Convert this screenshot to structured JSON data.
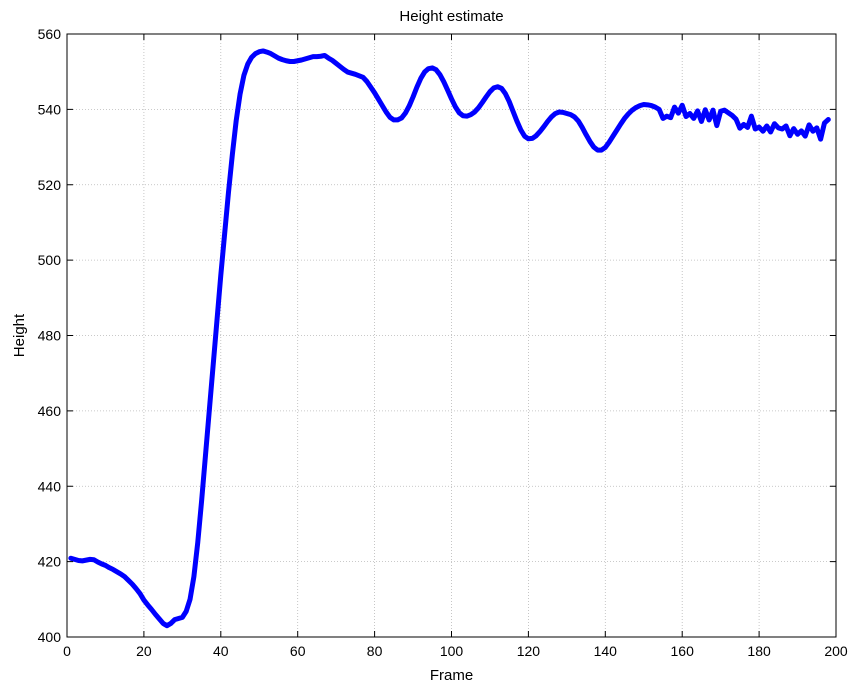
{
  "chart_data": {
    "type": "line",
    "title": "Height estimate",
    "xlabel": "Frame",
    "ylabel": "Height",
    "xlim": [
      0,
      200
    ],
    "ylim": [
      400,
      560
    ],
    "x_ticks": [
      0,
      20,
      40,
      60,
      80,
      100,
      120,
      140,
      160,
      180,
      200
    ],
    "y_ticks": [
      400,
      420,
      440,
      460,
      480,
      500,
      520,
      540,
      560
    ],
    "x_tick_labels": [
      "0",
      "20",
      "40",
      "60",
      "80",
      "100",
      "120",
      "140",
      "160",
      "180",
      "200"
    ],
    "y_tick_labels": [
      "400",
      "420",
      "440",
      "460",
      "480",
      "500",
      "520",
      "540",
      "560"
    ],
    "grid": true,
    "legend": "none",
    "line_color": "#0000ff",
    "series": [
      {
        "points": [
          [
            1,
            420.9
          ],
          [
            2,
            420.6
          ],
          [
            3,
            420.3
          ],
          [
            4,
            420.2
          ],
          [
            5,
            420.4
          ],
          [
            6,
            420.6
          ],
          [
            7,
            420.5
          ],
          [
            8,
            419.9
          ],
          [
            9,
            419.4
          ],
          [
            10,
            419.0
          ],
          [
            11,
            418.4
          ],
          [
            12,
            417.9
          ],
          [
            13,
            417.3
          ],
          [
            14,
            416.7
          ],
          [
            15,
            416.0
          ],
          [
            16,
            415.0
          ],
          [
            17,
            414.0
          ],
          [
            18,
            412.8
          ],
          [
            19,
            411.5
          ],
          [
            20,
            409.8
          ],
          [
            21,
            408.5
          ],
          [
            22,
            407.3
          ],
          [
            23,
            406.0
          ],
          [
            24,
            404.8
          ],
          [
            25,
            403.6
          ],
          [
            26,
            403.0
          ],
          [
            27,
            403.6
          ],
          [
            28,
            404.6
          ],
          [
            29,
            404.9
          ],
          [
            30,
            405.2
          ],
          [
            31,
            406.8
          ],
          [
            32,
            410.0
          ],
          [
            33,
            416.0
          ],
          [
            34,
            425.0
          ],
          [
            35,
            436.0
          ],
          [
            36,
            448.0
          ],
          [
            37,
            460.0
          ],
          [
            38,
            472.0
          ],
          [
            39,
            484.0
          ],
          [
            40,
            496.0
          ],
          [
            41,
            507.0
          ],
          [
            42,
            518.0
          ],
          [
            43,
            528.0
          ],
          [
            44,
            537.0
          ],
          [
            45,
            544.0
          ],
          [
            46,
            549.0
          ],
          [
            47,
            552.0
          ],
          [
            48,
            553.8
          ],
          [
            49,
            554.8
          ],
          [
            50,
            555.3
          ],
          [
            51,
            555.5
          ],
          [
            52,
            555.2
          ],
          [
            53,
            554.8
          ],
          [
            54,
            554.2
          ],
          [
            55,
            553.6
          ],
          [
            56,
            553.2
          ],
          [
            57,
            552.9
          ],
          [
            58,
            552.7
          ],
          [
            59,
            552.7
          ],
          [
            60,
            552.9
          ],
          [
            61,
            553.1
          ],
          [
            62,
            553.4
          ],
          [
            63,
            553.7
          ],
          [
            64,
            554.0
          ],
          [
            65,
            554.0
          ],
          [
            66,
            554.1
          ],
          [
            67,
            554.3
          ],
          [
            68,
            553.6
          ],
          [
            69,
            553.0
          ],
          [
            70,
            552.2
          ],
          [
            71,
            551.4
          ],
          [
            72,
            550.6
          ],
          [
            73,
            549.9
          ],
          [
            74,
            549.6
          ],
          [
            75,
            549.3
          ],
          [
            76,
            548.9
          ],
          [
            77,
            548.5
          ],
          [
            78,
            547.4
          ],
          [
            79,
            545.9
          ],
          [
            80,
            544.4
          ],
          [
            81,
            542.7
          ],
          [
            82,
            541.0
          ],
          [
            83,
            539.3
          ],
          [
            84,
            537.9
          ],
          [
            85,
            537.2
          ],
          [
            86,
            537.2
          ],
          [
            87,
            537.7
          ],
          [
            88,
            539.0
          ],
          [
            89,
            540.9
          ],
          [
            90,
            543.3
          ],
          [
            91,
            545.9
          ],
          [
            92,
            548.2
          ],
          [
            93,
            549.9
          ],
          [
            94,
            550.8
          ],
          [
            95,
            551.0
          ],
          [
            96,
            550.5
          ],
          [
            97,
            549.2
          ],
          [
            98,
            547.3
          ],
          [
            99,
            545.1
          ],
          [
            100,
            542.8
          ],
          [
            101,
            540.7
          ],
          [
            102,
            539.1
          ],
          [
            103,
            538.3
          ],
          [
            104,
            538.2
          ],
          [
            105,
            538.6
          ],
          [
            106,
            539.3
          ],
          [
            107,
            540.4
          ],
          [
            108,
            541.8
          ],
          [
            109,
            543.3
          ],
          [
            110,
            544.7
          ],
          [
            111,
            545.7
          ],
          [
            112,
            546.0
          ],
          [
            113,
            545.6
          ],
          [
            114,
            544.2
          ],
          [
            115,
            542.1
          ],
          [
            116,
            539.5
          ],
          [
            117,
            536.9
          ],
          [
            118,
            534.6
          ],
          [
            119,
            532.9
          ],
          [
            120,
            532.2
          ],
          [
            121,
            532.3
          ],
          [
            122,
            533.0
          ],
          [
            123,
            534.1
          ],
          [
            124,
            535.4
          ],
          [
            125,
            536.8
          ],
          [
            126,
            538.0
          ],
          [
            127,
            538.9
          ],
          [
            128,
            539.3
          ],
          [
            129,
            539.2
          ],
          [
            130,
            538.9
          ],
          [
            131,
            538.6
          ],
          [
            132,
            538.0
          ],
          [
            133,
            536.9
          ],
          [
            134,
            535.2
          ],
          [
            135,
            533.3
          ],
          [
            136,
            531.5
          ],
          [
            137,
            530.0
          ],
          [
            138,
            529.2
          ],
          [
            139,
            529.2
          ],
          [
            140,
            529.9
          ],
          [
            141,
            531.3
          ],
          [
            142,
            532.9
          ],
          [
            143,
            534.5
          ],
          [
            144,
            536.1
          ],
          [
            145,
            537.6
          ],
          [
            146,
            538.8
          ],
          [
            147,
            539.8
          ],
          [
            148,
            540.5
          ],
          [
            149,
            541.0
          ],
          [
            150,
            541.3
          ],
          [
            151,
            541.2
          ],
          [
            152,
            541.0
          ],
          [
            153,
            540.6
          ],
          [
            154,
            540.0
          ],
          [
            155,
            537.6
          ],
          [
            156,
            538.2
          ],
          [
            157,
            537.8
          ],
          [
            158,
            540.6
          ],
          [
            159,
            539.0
          ],
          [
            160,
            541.1
          ],
          [
            161,
            538.1
          ],
          [
            162,
            538.9
          ],
          [
            163,
            537.6
          ],
          [
            164,
            539.6
          ],
          [
            165,
            536.8
          ],
          [
            166,
            539.9
          ],
          [
            167,
            537.2
          ],
          [
            168,
            539.8
          ],
          [
            169,
            535.7
          ],
          [
            170,
            539.5
          ],
          [
            171,
            539.8
          ],
          [
            172,
            539.1
          ],
          [
            173,
            538.4
          ],
          [
            174,
            537.4
          ],
          [
            175,
            535.0
          ],
          [
            176,
            536.0
          ],
          [
            177,
            535.2
          ],
          [
            178,
            538.2
          ],
          [
            179,
            534.8
          ],
          [
            180,
            535.3
          ],
          [
            181,
            534.2
          ],
          [
            182,
            535.6
          ],
          [
            183,
            534.0
          ],
          [
            184,
            536.2
          ],
          [
            185,
            535.1
          ],
          [
            186,
            534.8
          ],
          [
            187,
            535.6
          ],
          [
            188,
            533.0
          ],
          [
            189,
            534.9
          ],
          [
            190,
            533.4
          ],
          [
            191,
            534.3
          ],
          [
            192,
            532.9
          ],
          [
            193,
            535.9
          ],
          [
            194,
            534.2
          ],
          [
            195,
            535.1
          ],
          [
            196,
            532.1
          ],
          [
            197,
            536.4
          ],
          [
            198,
            537.3
          ]
        ]
      }
    ]
  }
}
